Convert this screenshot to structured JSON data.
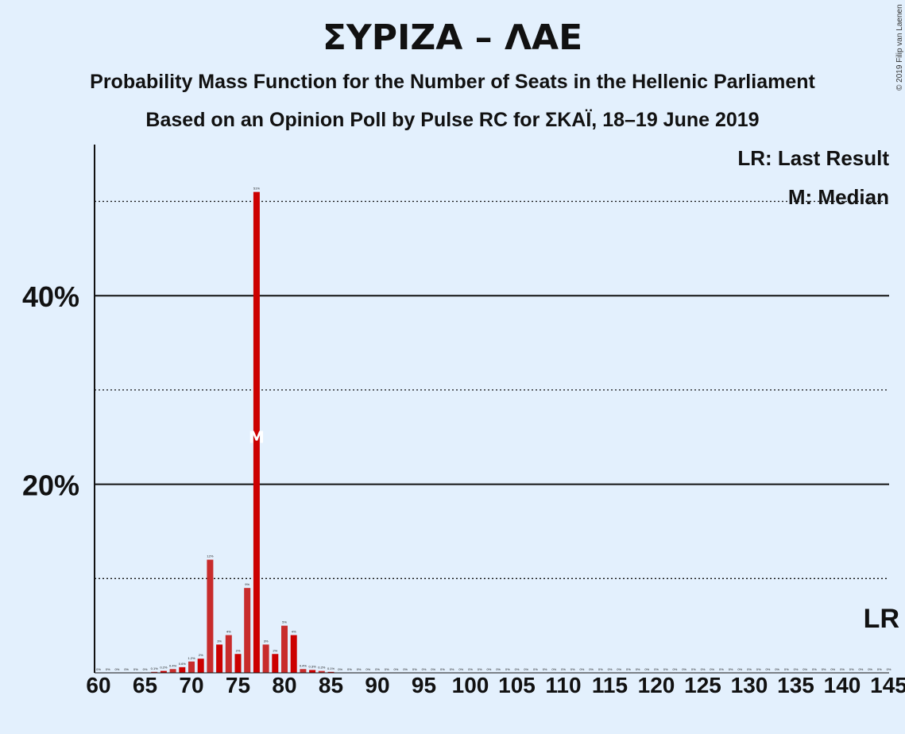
{
  "title": "ΣΥΡΙΖΑ – ΛΑΕ",
  "subtitle1": "Probability Mass Function for the Number of Seats in the Hellenic Parliament",
  "subtitle2": "Based on an Opinion Poll by Pulse RC for ΣΚΑΪ, 18–19 June 2019",
  "copyright": "© 2019 Filip van Laenen",
  "legend": {
    "lr": "LR: Last Result",
    "median": "M: Median"
  },
  "lr_marker": "LR",
  "median_marker": "M",
  "colors": {
    "bar_dark": "#cc0000",
    "bar_light": "#c82c2c",
    "background": "#e3f0fd"
  },
  "chart_data": {
    "type": "bar",
    "xlabel": "",
    "ylabel": "",
    "xlim": [
      60,
      145
    ],
    "ylim": [
      0,
      56
    ],
    "x_ticks": [
      "60",
      "65",
      "70",
      "75",
      "80",
      "85",
      "90",
      "95",
      "100",
      "105",
      "110",
      "115",
      "120",
      "125",
      "130",
      "135",
      "140",
      "145"
    ],
    "y_ticks": [
      "20%",
      "40%"
    ],
    "gridlines_solid": [
      20,
      40
    ],
    "gridlines_dotted": [
      10,
      30,
      50
    ],
    "median": 77,
    "last_result": 145,
    "x": [
      60,
      61,
      62,
      63,
      64,
      65,
      66,
      67,
      68,
      69,
      70,
      71,
      72,
      73,
      74,
      75,
      76,
      77,
      78,
      79,
      80,
      81,
      82,
      83,
      84,
      85,
      86,
      87,
      88,
      89,
      90,
      91,
      92,
      93,
      94,
      95,
      96,
      97,
      98,
      99,
      100,
      101,
      102,
      103,
      104,
      105,
      106,
      107,
      108,
      109,
      110,
      111,
      112,
      113,
      114,
      115,
      116,
      117,
      118,
      119,
      120,
      121,
      122,
      123,
      124,
      125,
      126,
      127,
      128,
      129,
      130,
      131,
      132,
      133,
      134,
      135,
      136,
      137,
      138,
      139,
      140,
      141,
      142,
      143,
      144,
      145
    ],
    "values": [
      0,
      0,
      0,
      0,
      0,
      0,
      0.1,
      0.2,
      0.4,
      0.6,
      1.2,
      1.5,
      12,
      3,
      4,
      2,
      9,
      51,
      3,
      2,
      5,
      4,
      0.4,
      0.3,
      0.2,
      0.1,
      0,
      0,
      0,
      0,
      0,
      0,
      0,
      0,
      0,
      0,
      0,
      0,
      0,
      0,
      0,
      0,
      0,
      0,
      0,
      0,
      0,
      0,
      0,
      0,
      0,
      0,
      0,
      0,
      0,
      0,
      0,
      0,
      0,
      0,
      0,
      0,
      0,
      0,
      0,
      0,
      0,
      0,
      0,
      0,
      0,
      0,
      0,
      0,
      0,
      0,
      0,
      0,
      0,
      0,
      0,
      0,
      0,
      0,
      0,
      0
    ],
    "labels": [
      "0%",
      "0%",
      "0%",
      "0%",
      "0%",
      "0%",
      "0.1%",
      "0.2%",
      "0.4%",
      "0.6%",
      "1.2%",
      "2%",
      "12%",
      "3%",
      "4%",
      "2%",
      "9%",
      "51%",
      "3%",
      "2%",
      "5%",
      "4%",
      "0.4%",
      "0.3%",
      "0.2%",
      "0.1%",
      "0%",
      "0%",
      "0%",
      "0%",
      "0%",
      "0%",
      "0%",
      "0%",
      "0%",
      "0%",
      "0%",
      "0%",
      "0%",
      "0%",
      "0%",
      "0%",
      "0%",
      "0%",
      "0%",
      "0%",
      "0%",
      "0%",
      "0%",
      "0%",
      "0%",
      "0%",
      "0%",
      "0%",
      "0%",
      "0%",
      "0%",
      "0%",
      "0%",
      "0%",
      "0%",
      "0%",
      "0%",
      "0%",
      "0%",
      "0%",
      "0%",
      "0%",
      "0%",
      "0%",
      "0%",
      "0%",
      "0%",
      "0%",
      "0%",
      "0%",
      "0%",
      "0%",
      "0%",
      "0%",
      "0%",
      "0%",
      "0%",
      "0%",
      "0%",
      "0%"
    ]
  }
}
